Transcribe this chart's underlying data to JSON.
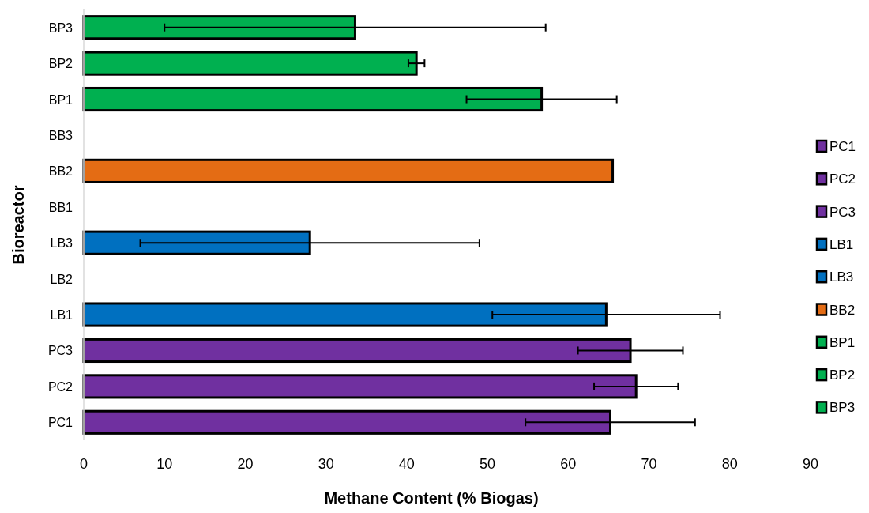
{
  "chart_data": {
    "type": "bar",
    "orientation": "horizontal",
    "stacked": true,
    "xlabel": "Methane Content (% Biogas)",
    "ylabel": "Bioreactor",
    "categories": [
      "BP3",
      "BP2",
      "BP1",
      "BB3",
      "BB2",
      "BB1",
      "LB3",
      "LB2",
      "LB1",
      "PC3",
      "PC2",
      "PC1"
    ],
    "xlim": [
      0,
      90
    ],
    "xticks": [
      0,
      10,
      20,
      30,
      40,
      50,
      60,
      70,
      80,
      90
    ],
    "grid": false,
    "legend": "right",
    "series": [
      {
        "name": "PC1",
        "color": "#7030a0",
        "values": [
          null,
          null,
          null,
          null,
          null,
          null,
          null,
          null,
          null,
          null,
          null,
          65.2
        ],
        "errors": [
          null,
          null,
          null,
          null,
          null,
          null,
          null,
          null,
          null,
          null,
          null,
          10.5
        ]
      },
      {
        "name": "PC2",
        "color": "#7030a0",
        "values": [
          null,
          null,
          null,
          null,
          null,
          null,
          null,
          null,
          null,
          null,
          68.4,
          null
        ],
        "errors": [
          null,
          null,
          null,
          null,
          null,
          null,
          null,
          null,
          null,
          null,
          5.2,
          null
        ]
      },
      {
        "name": "PC3",
        "color": "#7030a0",
        "values": [
          null,
          null,
          null,
          null,
          null,
          null,
          null,
          null,
          null,
          67.7,
          null,
          null
        ],
        "errors": [
          null,
          null,
          null,
          null,
          null,
          null,
          null,
          null,
          null,
          6.5,
          null,
          null
        ]
      },
      {
        "name": "LB1",
        "color": "#0070c0",
        "values": [
          null,
          null,
          null,
          null,
          null,
          null,
          null,
          null,
          64.7,
          null,
          null,
          null
        ],
        "errors": [
          null,
          null,
          null,
          null,
          null,
          null,
          null,
          null,
          14.1,
          null,
          null,
          null
        ]
      },
      {
        "name": "LB3",
        "color": "#0070c0",
        "values": [
          null,
          null,
          null,
          null,
          null,
          null,
          28.0,
          null,
          null,
          null,
          null,
          null
        ],
        "errors": [
          null,
          null,
          null,
          null,
          null,
          null,
          21.0,
          null,
          null,
          null,
          null,
          null
        ]
      },
      {
        "name": "BB2",
        "color": "#e46c14",
        "values": [
          null,
          null,
          null,
          null,
          65.5,
          null,
          null,
          null,
          null,
          null,
          null,
          null
        ]
      },
      {
        "name": "BP1",
        "color": "#00b050",
        "values": [
          null,
          null,
          56.7,
          null,
          null,
          null,
          null,
          null,
          null,
          null,
          null,
          null
        ],
        "errors": [
          null,
          null,
          9.3,
          null,
          null,
          null,
          null,
          null,
          null,
          null,
          null,
          null
        ]
      },
      {
        "name": "BP2",
        "color": "#00b050",
        "values": [
          null,
          41.2,
          null,
          null,
          null,
          null,
          null,
          null,
          null,
          null,
          null,
          null
        ],
        "errors": [
          null,
          1.0,
          null,
          null,
          null,
          null,
          null,
          null,
          null,
          null,
          null,
          null
        ]
      },
      {
        "name": "BP3",
        "color": "#00b050",
        "values": [
          33.6,
          null,
          null,
          null,
          null,
          null,
          null,
          null,
          null,
          null,
          null,
          null
        ],
        "errors": [
          23.6,
          null,
          null,
          null,
          null,
          null,
          null,
          null,
          null,
          null,
          null,
          null
        ]
      }
    ]
  }
}
